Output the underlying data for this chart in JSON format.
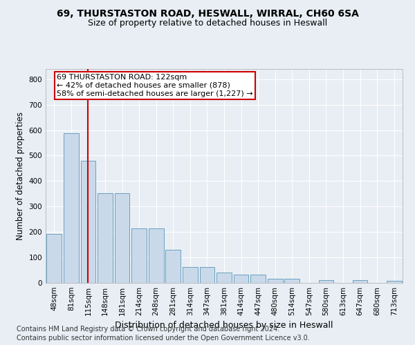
{
  "title1": "69, THURSTASTON ROAD, HESWALL, WIRRAL, CH60 6SA",
  "title2": "Size of property relative to detached houses in Heswall",
  "xlabel": "Distribution of detached houses by size in Heswall",
  "ylabel": "Number of detached properties",
  "footnote1": "Contains HM Land Registry data © Crown copyright and database right 2024.",
  "footnote2": "Contains public sector information licensed under the Open Government Licence v3.0.",
  "bin_labels": [
    "48sqm",
    "81sqm",
    "115sqm",
    "148sqm",
    "181sqm",
    "214sqm",
    "248sqm",
    "281sqm",
    "314sqm",
    "347sqm",
    "381sqm",
    "414sqm",
    "447sqm",
    "480sqm",
    "514sqm",
    "547sqm",
    "580sqm",
    "613sqm",
    "647sqm",
    "680sqm",
    "713sqm"
  ],
  "bar_values": [
    193,
    587,
    480,
    353,
    353,
    213,
    213,
    130,
    63,
    63,
    40,
    32,
    32,
    16,
    16,
    0,
    11,
    0,
    11,
    0,
    8
  ],
  "bar_color": "#cad9e9",
  "bar_edge_color": "#6a9fc0",
  "vline_x": 2,
  "annotation_line1": "69 THURSTASTON ROAD: 122sqm",
  "annotation_line2": "← 42% of detached houses are smaller (878)",
  "annotation_line3": "58% of semi-detached houses are larger (1,227) →",
  "annotation_box_color": "#ffffff",
  "annotation_box_edge_color": "#cc0000",
  "vline_color": "#cc0000",
  "ylim": [
    0,
    840
  ],
  "yticks": [
    0,
    100,
    200,
    300,
    400,
    500,
    600,
    700,
    800
  ],
  "bg_color": "#e8eef4",
  "plot_bg_color": "#e8eef4",
  "grid_color": "#ffffff",
  "title1_fontsize": 10,
  "title2_fontsize": 9,
  "xlabel_fontsize": 9,
  "ylabel_fontsize": 8.5,
  "tick_fontsize": 7.5,
  "annotation_fontsize": 8,
  "footnote_fontsize": 7
}
